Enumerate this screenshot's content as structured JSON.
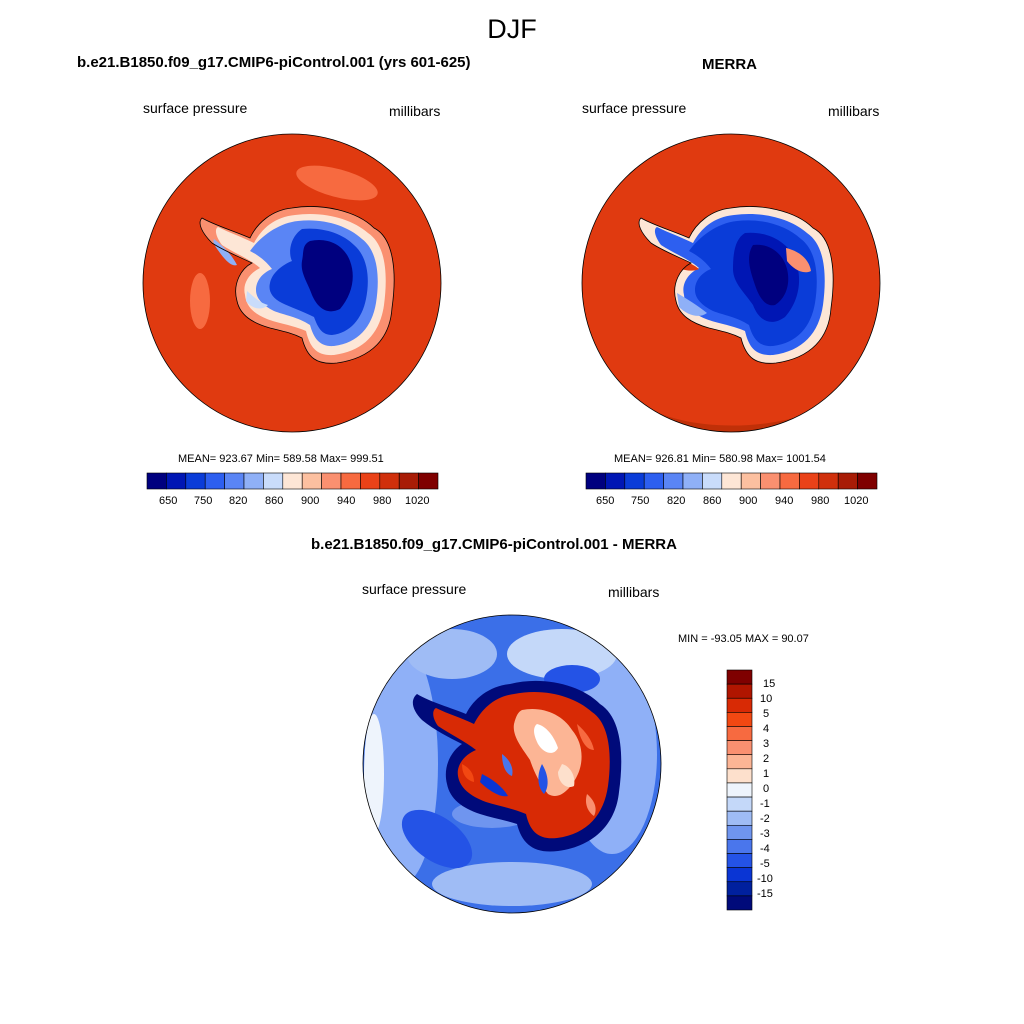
{
  "figure": {
    "title": "DJF"
  },
  "panels": [
    {
      "title": "b.e21.B1850.f09_g17.CMIP6-piControl.001 (yrs 601-625)",
      "left_label": "surface pressure",
      "right_label": "millibars",
      "stats": "MEAN= 923.67  Min= 589.58  Max= 999.51",
      "map_fill": "#e03a10"
    },
    {
      "title": "MERRA",
      "left_label": "surface pressure",
      "right_label": "millibars",
      "stats": "MEAN= 926.81  Min= 580.98  Max= 1001.54",
      "map_fill": "#e03a10"
    },
    {
      "title": "b.e21.B1850.f09_g17.CMIP6-piControl.001 - MERRA",
      "left_label": "surface pressure",
      "right_label": "millibars",
      "stats": "MIN = -93.05 MAX =  90.07",
      "map_fill": "#3b6fe8"
    }
  ],
  "colorbar_horizontal": {
    "colors": [
      "#00007f",
      "#0016b4",
      "#0a3cd8",
      "#2d5ff0",
      "#5a85f5",
      "#8fb0f7",
      "#c9dcfb",
      "#fde6d6",
      "#fcc0a0",
      "#fa9070",
      "#f76a40",
      "#ea4218",
      "#d0300c",
      "#a81c06",
      "#7f0000"
    ],
    "labels": [
      "650",
      "750",
      "820",
      "860",
      "900",
      "940",
      "980",
      "1020"
    ]
  },
  "colorbar_vertical": {
    "colors": [
      "#7f0000",
      "#b01500",
      "#d82a05",
      "#f24812",
      "#f76a40",
      "#fa9070",
      "#fcb595",
      "#fde0cc",
      "#eef4fc",
      "#c4d8f9",
      "#9fbcf5",
      "#6f95ef",
      "#4a76ec",
      "#2453e6",
      "#0a35d4",
      "#00209e",
      "#000a7a"
    ],
    "labels": [
      "15",
      "10",
      "5",
      "4",
      "3",
      "2",
      "1",
      "0",
      "-1",
      "-2",
      "-3",
      "-4",
      "-5",
      "-10",
      "-15"
    ]
  }
}
